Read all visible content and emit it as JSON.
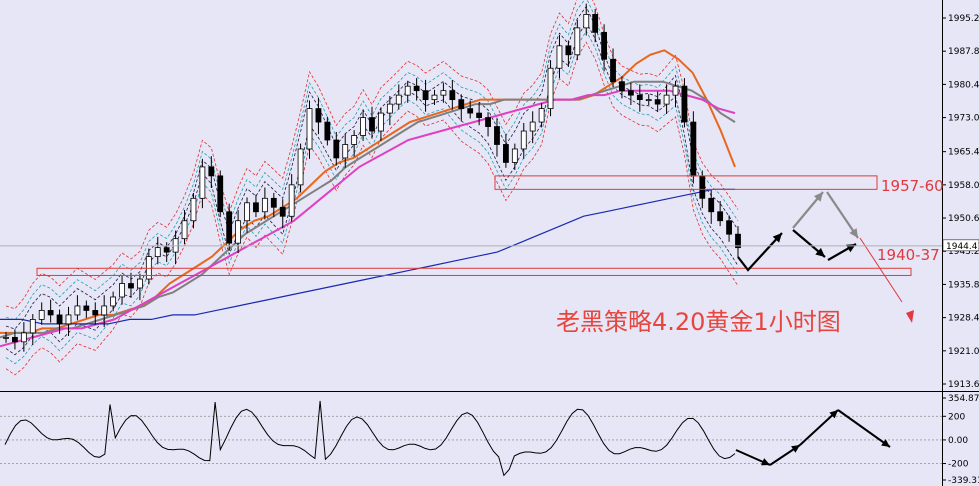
{
  "chart_data": [
    {
      "type": "candlestick",
      "title": "老黑策略4.20黄金1小时图",
      "price_axis_ticks": [
        1995.2,
        1987.8,
        1980.4,
        1973.0,
        1965.4,
        1958.0,
        1950.6,
        1943.2,
        1935.8,
        1928.4,
        1921.0,
        1913.6
      ],
      "price_axis_tick_labels": [
        "1995.20",
        "1987.80",
        "1980.40",
        "1973.00",
        "1965.40",
        "1958.00",
        "1950.60",
        "1943.20",
        "1935.80",
        "1928.40",
        "1921.00",
        "1913.60"
      ],
      "current_price": 1944.4,
      "current_price_label": "1944.41",
      "ylim": [
        1913.6,
        2001.0
      ],
      "zones": [
        {
          "label": "1957-60",
          "low": 1957.0,
          "high": 1960.0
        },
        {
          "label": "1940-37",
          "low": 1937.8,
          "high": 1939.4
        }
      ],
      "close_series": [
        1924,
        1923,
        1925,
        1928,
        1930,
        1929,
        1927,
        1929,
        1931,
        1930,
        1929,
        1931,
        1933,
        1936,
        1935,
        1937,
        1942,
        1944,
        1943,
        1946,
        1950,
        1955,
        1962,
        1960,
        1952,
        1945,
        1950,
        1954,
        1952,
        1955,
        1953,
        1951,
        1958,
        1966,
        1975,
        1972,
        1968,
        1964,
        1967,
        1969,
        1973,
        1970,
        1974,
        1976,
        1978,
        1980,
        1979,
        1977,
        1978,
        1979,
        1977,
        1975,
        1974,
        1973,
        1971,
        1967,
        1963,
        1966,
        1970,
        1972,
        1975,
        1984,
        1989,
        1987,
        1993,
        1996,
        1992,
        1986,
        1981,
        1979,
        1978,
        1977,
        1977,
        1976,
        1978,
        1980,
        1972,
        1960,
        1955,
        1952,
        1950,
        1947,
        1944
      ],
      "ma_series": [
        {
          "color": "#e8671c",
          "values": [
            1925,
            1925,
            1925,
            1926,
            1926,
            1927,
            1928,
            1929,
            1929,
            1930,
            1931,
            1933,
            1936,
            1938,
            1940,
            1942,
            1945,
            1948,
            1950,
            1951,
            1953,
            1955,
            1958,
            1961,
            1963,
            1964,
            1966,
            1968,
            1970,
            1972,
            1973,
            1974,
            1975,
            1976,
            1977,
            1977,
            1977,
            1977,
            1977,
            1977,
            1977,
            1977,
            1978,
            1980,
            1982,
            1985,
            1987,
            1988,
            1986,
            1983,
            1977,
            1970,
            1962
          ]
        },
        {
          "color": "#808080",
          "values": [
            1924,
            1925,
            1925,
            1925,
            1926,
            1926,
            1927,
            1928,
            1929,
            1930,
            1931,
            1933,
            1934,
            1936,
            1938,
            1941,
            1944,
            1947,
            1949,
            1951,
            1953,
            1955,
            1957,
            1959,
            1962,
            1964,
            1966,
            1968,
            1970,
            1972,
            1973,
            1974,
            1975,
            1976,
            1976,
            1977,
            1977,
            1977,
            1977,
            1977,
            1977,
            1978,
            1979,
            1980,
            1981,
            1981,
            1981,
            1980,
            1979,
            1977,
            1974,
            1972
          ]
        },
        {
          "color": "#e040c0",
          "values": [
            1922,
            1923,
            1924,
            1925,
            1926,
            1926,
            1927,
            1928,
            1930,
            1932,
            1934,
            1936,
            1938,
            1940,
            1942,
            1944,
            1946,
            1948,
            1950,
            1953,
            1956,
            1959,
            1962,
            1964,
            1966,
            1968,
            1969,
            1970,
            1971,
            1972,
            1973,
            1974,
            1975,
            1976,
            1977,
            1977,
            1978,
            1978,
            1979,
            1979,
            1979,
            1979,
            1978,
            1977,
            1975,
            1974
          ]
        },
        {
          "color": "#1a2ab0",
          "values": [
            1928,
            1928,
            1927,
            1927,
            1927,
            1927,
            1928,
            1928,
            1929,
            1929,
            1930,
            1931,
            1932,
            1933,
            1934,
            1935,
            1936,
            1937,
            1938,
            1939,
            1940,
            1941,
            1942,
            1943,
            1945,
            1947,
            1949,
            1951,
            1952,
            1953,
            1954,
            1955,
            1956,
            1957,
            1957
          ]
        }
      ]
    },
    {
      "type": "line",
      "title": "",
      "yticks": [
        354.879,
        200,
        0.0,
        -200,
        -339.31
      ],
      "ytick_labels": [
        "354.879",
        "200",
        "0.00",
        "-200",
        "-339.31"
      ],
      "ylim": [
        -339.31,
        354.879
      ]
    }
  ]
}
